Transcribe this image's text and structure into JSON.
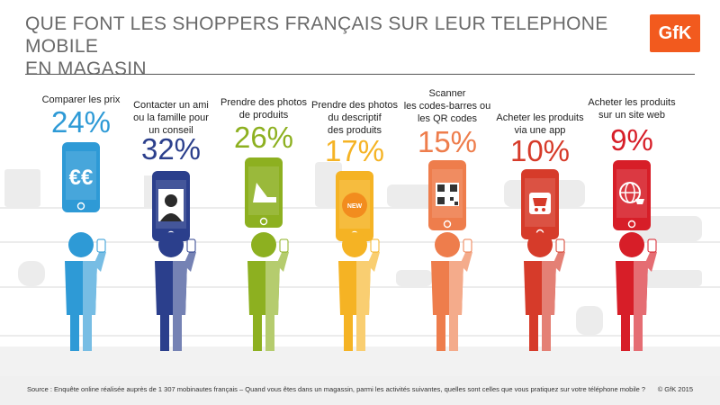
{
  "header": {
    "title_line1": "QUE FONT LES SHOPPERS FRANÇAIS SUR LEUR TELEPHONE MOBILE",
    "title_line2": "EN MAGASIN",
    "logo_text": "GfK",
    "logo_color": "#f25a1e"
  },
  "chart_data": {
    "type": "bar",
    "categories": [
      "Comparer les prix",
      "Contacter un ami ou la famille pour un conseil",
      "Prendre des photos de produits",
      "Prendre des photos du descriptif des produits",
      "Scanner les codes-barres ou les QR codes",
      "Acheter les produits via une app",
      "Acheter les produits sur un site web"
    ],
    "values": [
      24,
      32,
      26,
      17,
      15,
      10,
      9
    ],
    "value_labels": [
      "24%",
      "32%",
      "26%",
      "17%",
      "15%",
      "10%",
      "9%"
    ],
    "label_lines": [
      [
        "Comparer les prix"
      ],
      [
        "Contacter un ami",
        "ou la famille pour",
        "un conseil"
      ],
      [
        "Prendre des photos",
        "de produits"
      ],
      [
        "Prendre des photos",
        "du descriptif",
        "des produits"
      ],
      [
        "Scanner",
        "les codes-barres ou",
        "les QR codes"
      ],
      [
        "Acheter les produits",
        "via une app"
      ],
      [
        "Acheter les produits",
        "sur un site web"
      ]
    ],
    "colors": [
      "#2e9ad6",
      "#2b3f8c",
      "#8db020",
      "#f5b324",
      "#ee7d4c",
      "#d63b2a",
      "#d71e28"
    ],
    "icons": [
      "euro-icon",
      "person-icon",
      "shoe-icon",
      "new-badge-icon",
      "qr-code-icon",
      "cart-icon",
      "globe-cart-icon"
    ],
    "title": "QUE FONT LES SHOPPERS FRANÇAIS SUR LEUR TELEPHONE MOBILE EN MAGASIN"
  },
  "footer": {
    "source": "Source : Enquête online réalisée auprès de 1 307 mobinautes français – Quand vous êtes dans un magassin, parmi les activités suivantes, quelles sont celles que vous pratiquez sur votre téléphone mobile ?",
    "copyright": "© GfK 2015"
  }
}
